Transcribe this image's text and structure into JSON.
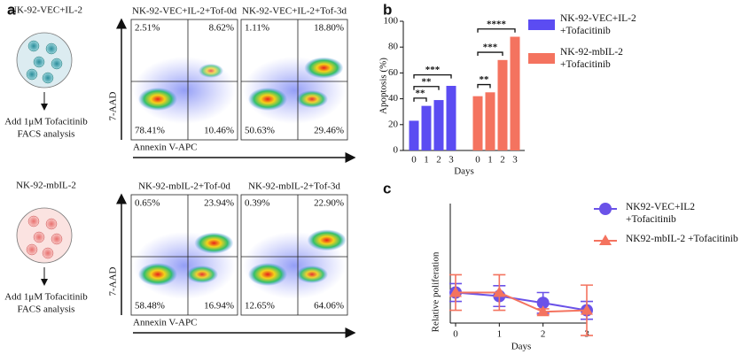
{
  "panel_labels": [
    "a",
    "b",
    "c"
  ],
  "panel_a": {
    "y_label": "7-AAD",
    "x_label": "Annexin V-APC",
    "groups": [
      {
        "name": "NK-92-VEC+IL-2",
        "steps": [
          "Add 1μM Tofacitinib",
          "FACS analysis"
        ],
        "plots": [
          {
            "title": "NK-92-VEC+IL-2+Tof-0d",
            "quadrants": [
              "2.51%",
              "8.62%",
              "78.41%",
              "10.46%"
            ]
          },
          {
            "title": "NK-92-VEC+IL-2+Tof-3d",
            "quadrants": [
              "1.11%",
              "18.80%",
              "50.63%",
              "29.46%"
            ]
          }
        ]
      },
      {
        "name": "NK-92-mbIL-2",
        "steps": [
          "Add 1μM Tofacitinib",
          "FACS analysis"
        ],
        "plots": [
          {
            "title": "NK-92-mbIL-2+Tof-0d",
            "quadrants": [
              "0.65%",
              "23.94%",
              "58.48%",
              "16.94%"
            ]
          },
          {
            "title": "NK-92-mbIL-2+Tof-3d",
            "quadrants": [
              "0.39%",
              "22.90%",
              "12.65%",
              "64.06%"
            ]
          }
        ]
      }
    ]
  },
  "chart_data": [
    {
      "type": "bar",
      "x_label": "Days",
      "y_label": "Apoptosis (%)",
      "categories": [
        "0",
        "1",
        "2",
        "3"
      ],
      "series": [
        {
          "name": "NK-92-VEC+IL-2 +Tofacitinib",
          "color": "#5b4cf2",
          "values": [
            23,
            34.5,
            39,
            50
          ]
        },
        {
          "name": "NK-92-mbIL-2 +Tofacitinib",
          "color": "#f4735f",
          "values": [
            42,
            45,
            70,
            88
          ]
        }
      ],
      "significance": [
        [
          "**",
          "**",
          "***"
        ],
        [
          "**",
          "***",
          "****"
        ]
      ],
      "ylim": [
        0,
        100
      ],
      "yticks": [
        0,
        20,
        40,
        60,
        80,
        100
      ]
    },
    {
      "type": "line",
      "x_label": "Days",
      "y_label": "Relative poliferation",
      "x": [
        0,
        1,
        2,
        3
      ],
      "xlim": [
        0,
        3
      ],
      "xticks": [
        0,
        1,
        2,
        3
      ],
      "ylim": [
        0,
        4
      ],
      "series": [
        {
          "name": "NK92-VEC+IL2 +Tofacitinib",
          "color": "#6a52e8",
          "marker": "circle",
          "values": [
            1.0,
            0.88,
            0.65,
            0.4
          ],
          "errors": [
            0.3,
            0.35,
            0.35,
            0.3
          ]
        },
        {
          "name": "NK92-mbIL-2 +Tofacitinib",
          "color": "#f4735f",
          "marker": "triangle",
          "values": [
            1.0,
            1.0,
            0.35,
            0.4
          ],
          "errors": [
            0.6,
            0.6,
            0.1,
            0.85
          ]
        }
      ]
    }
  ]
}
